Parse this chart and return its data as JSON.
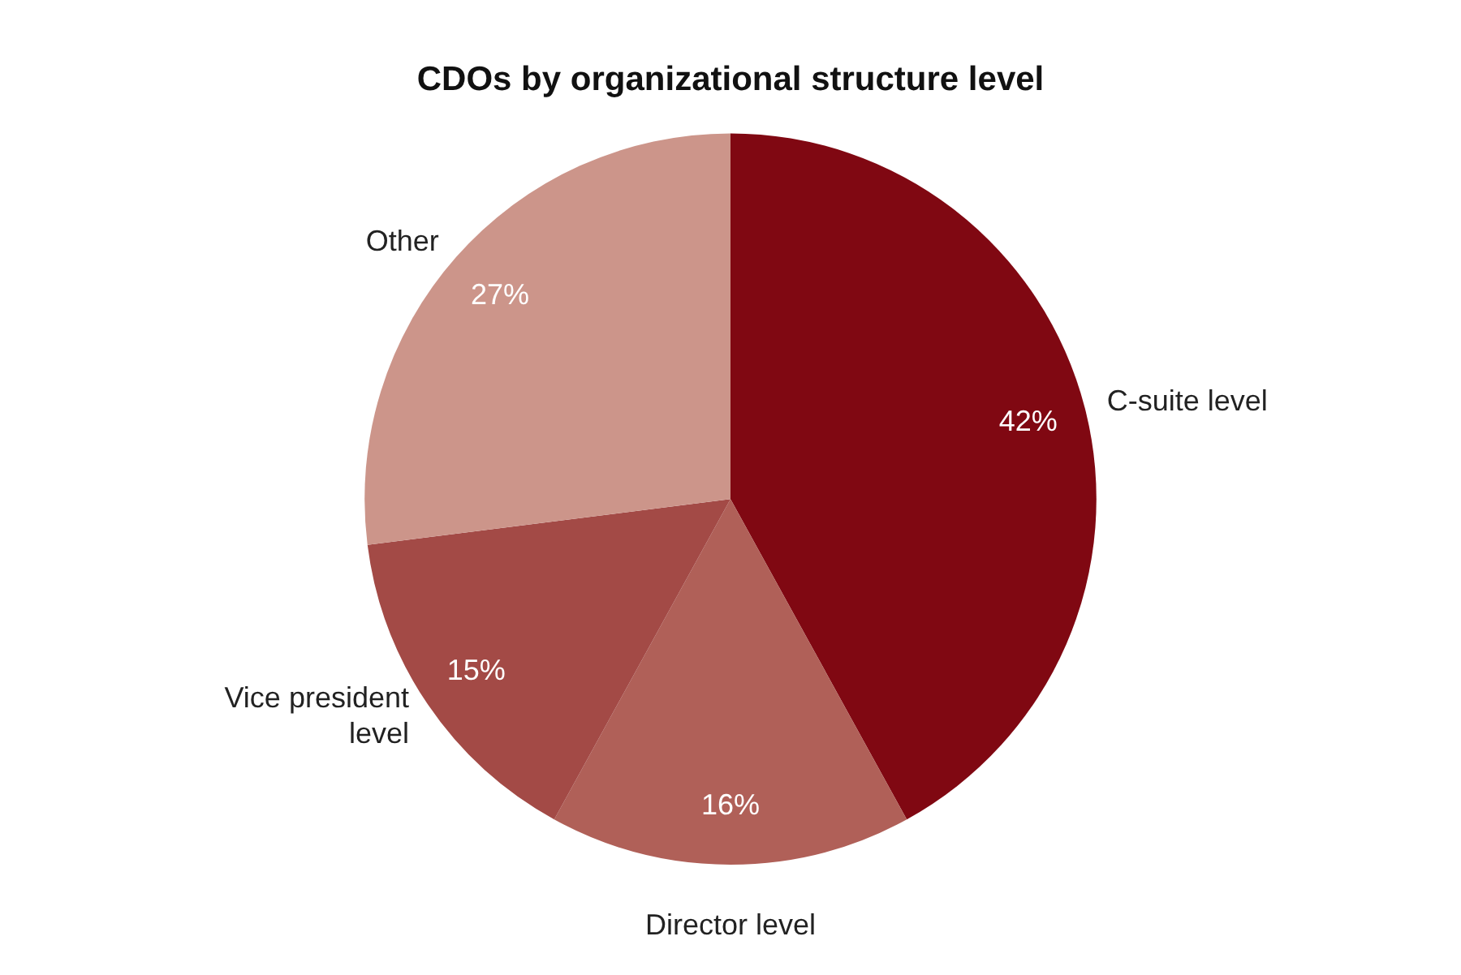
{
  "chart_data": {
    "type": "pie",
    "title": "CDOs by organizational structure level",
    "categories": [
      "C-suite level",
      "Director level",
      "Vice president level",
      "Other"
    ],
    "values": [
      42,
      16,
      15,
      27
    ],
    "value_labels": [
      "42%",
      "16%",
      "15%",
      "27%"
    ],
    "colors": [
      "#800812",
      "#b06058",
      "#a34a46",
      "#cc958a"
    ],
    "legend": false
  }
}
